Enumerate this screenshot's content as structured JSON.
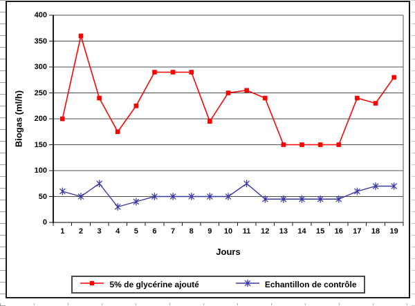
{
  "chart_data": {
    "type": "line",
    "title": "",
    "xlabel": "Jours",
    "ylabel": "Biogas (ml/h)",
    "ylim": [
      0,
      400
    ],
    "ytick_interval": 50,
    "grid": "horizontal",
    "legend_position": "bottom",
    "x": [
      1,
      2,
      3,
      4,
      5,
      6,
      7,
      8,
      9,
      10,
      11,
      12,
      13,
      14,
      15,
      16,
      17,
      18,
      19
    ],
    "series": [
      {
        "name": "5% de glycérine ajouté",
        "color": "#FF0000",
        "marker": "square",
        "values": [
          200,
          360,
          240,
          175,
          225,
          290,
          290,
          290,
          195,
          250,
          255,
          240,
          150,
          150,
          150,
          150,
          240,
          230,
          280
        ]
      },
      {
        "name": "Echantillon de contrôle",
        "color": "#3939A3",
        "marker": "asterisk",
        "values": [
          60,
          50,
          75,
          30,
          40,
          50,
          50,
          50,
          50,
          50,
          75,
          45,
          45,
          45,
          45,
          45,
          60,
          70,
          70
        ]
      }
    ]
  },
  "axes": {
    "y_tick_labels": [
      "400",
      "350",
      "300",
      "250",
      "200",
      "150",
      "100",
      "50",
      "0"
    ],
    "x_tick_labels": [
      "1",
      "2",
      "3",
      "4",
      "5",
      "6",
      "7",
      "8",
      "9",
      "10",
      "11",
      "12",
      "13",
      "14",
      "15",
      "16",
      "17",
      "18",
      "19"
    ]
  },
  "legend": {
    "entries": [
      {
        "label": "5% de glycérine ajouté",
        "color": "#FF0000",
        "marker": "square"
      },
      {
        "label": "Echantillon de contrôle",
        "color": "#3939A3",
        "marker": "asterisk"
      }
    ]
  },
  "colors": {
    "gridline": "#4d4d4d",
    "zero_axis": "#808080",
    "axis": "#1a1a1a",
    "frame_border": "#1c1c1c"
  }
}
